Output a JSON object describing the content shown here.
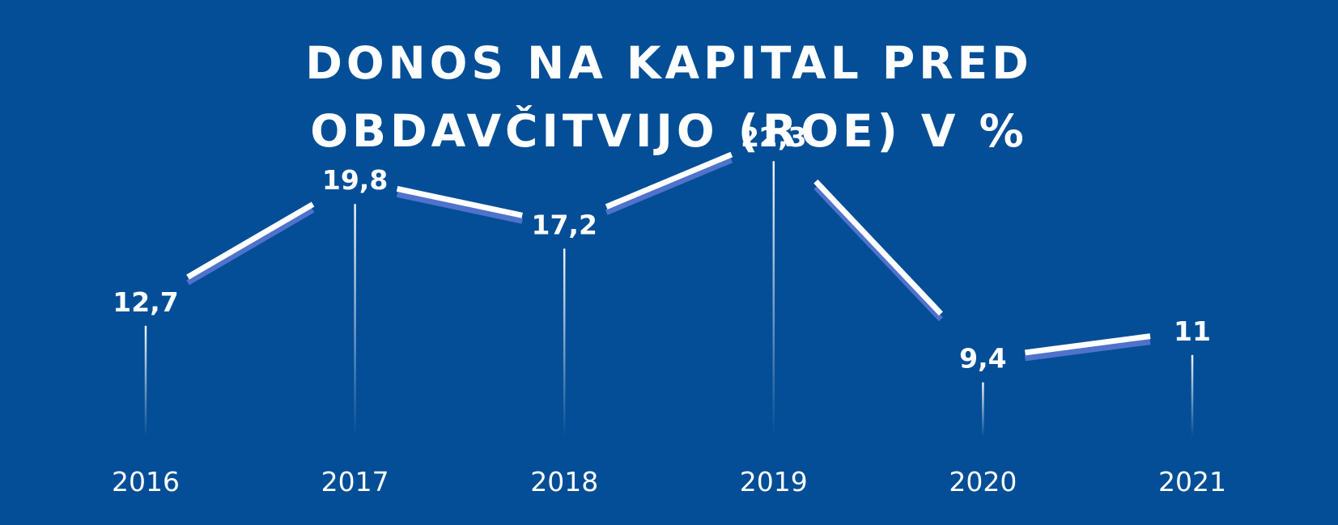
{
  "chart_data": {
    "type": "line",
    "title": "DONOS NA KAPITAL PRED OBDAVČITVIJO (ROE) V %",
    "title_lines": [
      "DONOS NA KAPITAL PRED",
      "OBDAVČITVIJO (ROE) V %"
    ],
    "categories": [
      "2016",
      "2017",
      "2018",
      "2019",
      "2020",
      "2021"
    ],
    "values": [
      12.7,
      19.8,
      17.2,
      22.3,
      9.4,
      11
    ],
    "value_labels": [
      "12,7",
      "19,8",
      "17,2",
      "22,3",
      "9,4",
      "11"
    ],
    "xlabel": "",
    "ylabel": "",
    "grid": false,
    "legend": "none"
  },
  "colors": {
    "background": "#034e96",
    "line": "#ffffff",
    "line_shadow": "#4f72cc",
    "text": "#ffffff"
  }
}
